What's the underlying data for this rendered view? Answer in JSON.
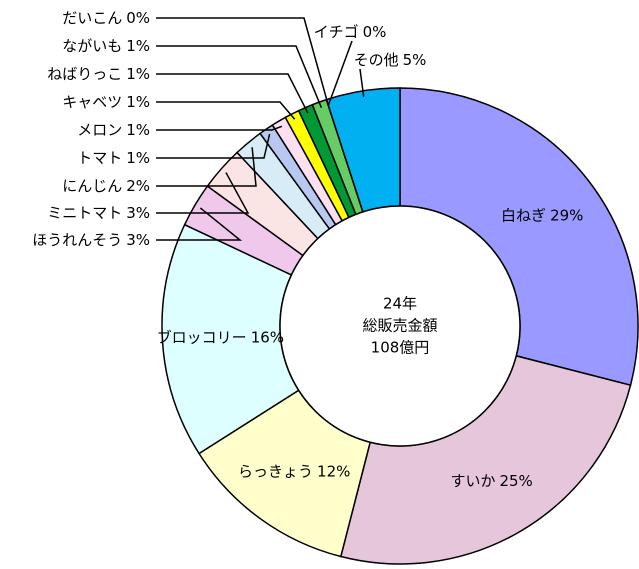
{
  "chart_data": {
    "type": "donut",
    "center_text": [
      "24年",
      "総販売金額",
      "108億円"
    ],
    "categories": [
      "白ねぎ",
      "すいか",
      "らっきょう",
      "ブロッコリー",
      "ほうれんそう",
      "ミニトマト",
      "にんじん",
      "トマト",
      "メロン",
      "キャベツ",
      "ねばりっこ",
      "ながいも",
      "だいこん",
      "イチゴ",
      "その他"
    ],
    "values": [
      29,
      25,
      12,
      16,
      3,
      3,
      2,
      1,
      1,
      1,
      1,
      1,
      0,
      0,
      5
    ],
    "value_labels": [
      "29%",
      "25%",
      "12%",
      "16%",
      "3%",
      "3%",
      "2%",
      "1%",
      "1%",
      "1%",
      "1%",
      "1%",
      "0%",
      "0%",
      "5%"
    ],
    "colors": [
      "#9999ff",
      "#e6c6da",
      "#ffffcc",
      "#ddffff",
      "#f0c8ec",
      "#fbe4e4",
      "#d8ecf8",
      "#b8c8f0",
      "#fce0f0",
      "#ffff00",
      "#009933",
      "#66cc66",
      "#ff0000",
      "#cc0000",
      "#00b0f0"
    ]
  }
}
